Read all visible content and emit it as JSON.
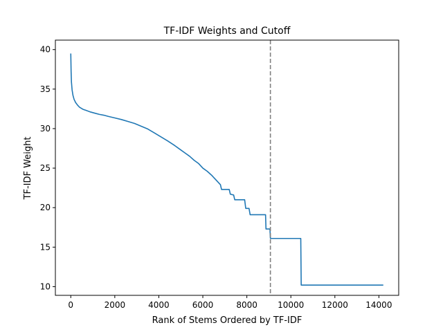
{
  "chart_data": {
    "type": "line",
    "title": "TF-IDF Weights and Cutoff",
    "xlabel": "Rank of Stems Ordered by TF-IDF",
    "ylabel": "TF-IDF Weight",
    "xlim": [
      -700,
      14900
    ],
    "ylim": [
      8.9,
      41.2
    ],
    "x_ticks": [
      0,
      2000,
      4000,
      6000,
      8000,
      10000,
      12000,
      14000
    ],
    "y_ticks": [
      10,
      15,
      20,
      25,
      30,
      35,
      40
    ],
    "grid": false,
    "legend": "none",
    "series": [
      {
        "color": "#1f77b4",
        "points": [
          [
            0,
            39.5
          ],
          [
            15,
            37.2
          ],
          [
            30,
            35.9
          ],
          [
            60,
            34.9
          ],
          [
            100,
            34.2
          ],
          [
            150,
            33.7
          ],
          [
            220,
            33.3
          ],
          [
            300,
            33.0
          ],
          [
            400,
            32.7
          ],
          [
            550,
            32.45
          ],
          [
            700,
            32.3
          ],
          [
            900,
            32.1
          ],
          [
            1100,
            31.95
          ],
          [
            1300,
            31.8
          ],
          [
            1500,
            31.7
          ],
          [
            1700,
            31.55
          ],
          [
            2000,
            31.35
          ],
          [
            2300,
            31.15
          ],
          [
            2600,
            30.9
          ],
          [
            2900,
            30.65
          ],
          [
            3200,
            30.3
          ],
          [
            3500,
            29.95
          ],
          [
            3800,
            29.45
          ],
          [
            4100,
            28.95
          ],
          [
            4400,
            28.45
          ],
          [
            4700,
            27.9
          ],
          [
            5000,
            27.3
          ],
          [
            5200,
            26.9
          ],
          [
            5400,
            26.5
          ],
          [
            5600,
            26.0
          ],
          [
            5800,
            25.6
          ],
          [
            6000,
            25.0
          ],
          [
            6200,
            24.6
          ],
          [
            6400,
            24.1
          ],
          [
            6600,
            23.5
          ],
          [
            6800,
            22.9
          ],
          [
            6850,
            22.3
          ],
          [
            7200,
            22.3
          ],
          [
            7250,
            21.7
          ],
          [
            7400,
            21.6
          ],
          [
            7450,
            21.0
          ],
          [
            7900,
            21.0
          ],
          [
            7950,
            19.9
          ],
          [
            8100,
            19.9
          ],
          [
            8150,
            19.1
          ],
          [
            8850,
            19.1
          ],
          [
            8870,
            17.3
          ],
          [
            9050,
            17.3
          ],
          [
            9070,
            16.1
          ],
          [
            10450,
            16.1
          ],
          [
            10470,
            10.2
          ],
          [
            14200,
            10.2
          ]
        ]
      }
    ],
    "cutoff_line": {
      "x": 9070,
      "color": "#808080",
      "style": "dashed"
    }
  }
}
